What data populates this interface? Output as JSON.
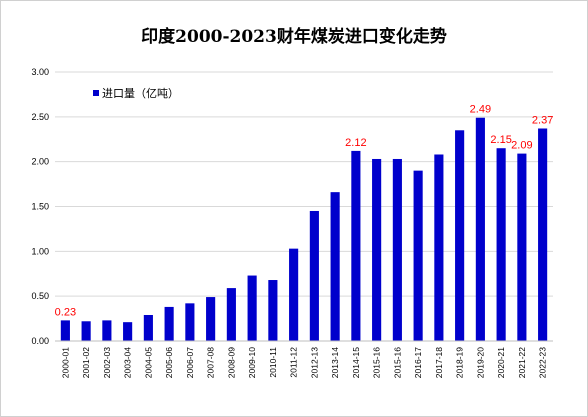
{
  "chart_data": {
    "type": "bar",
    "title": "印度2000-2023财年煤炭进口变化走势",
    "xlabel": "",
    "ylabel": "",
    "ylim": [
      0,
      3
    ],
    "yticks": [
      "0.00",
      "0.50",
      "1.00",
      "1.50",
      "2.00",
      "2.50",
      "3.00"
    ],
    "grid": true,
    "legend_position": "top-left",
    "bar_color": "#0000cc",
    "label_color": "#ff0000",
    "categories": [
      "2000-01",
      "2001-02",
      "2002-03",
      "2003-04",
      "2004-05",
      "2005-06",
      "2006-07",
      "2007-08",
      "2008-09",
      "2009-10",
      "2010-11",
      "2011-12",
      "2012-13",
      "2013-14",
      "2014-15",
      "2015-16",
      "2015-16",
      "2016-17",
      "2017-18",
      "2018-19",
      "2019-20",
      "2020-21",
      "2021-22",
      "2022-23"
    ],
    "series": [
      {
        "name": "进口量（亿吨）",
        "values": [
          0.23,
          0.22,
          0.23,
          0.21,
          0.29,
          0.38,
          0.42,
          0.49,
          0.59,
          0.73,
          0.68,
          1.03,
          1.45,
          1.66,
          2.12,
          2.03,
          2.03,
          1.9,
          2.08,
          2.35,
          2.49,
          2.15,
          2.09,
          2.37
        ]
      }
    ],
    "data_labels": [
      {
        "index": 0,
        "text": "0.23"
      },
      {
        "index": 14,
        "text": "2.12"
      },
      {
        "index": 20,
        "text": "2.49"
      },
      {
        "index": 21,
        "text": "2.15"
      },
      {
        "index": 22,
        "text": "2.09"
      },
      {
        "index": 23,
        "text": "2.37"
      }
    ]
  }
}
